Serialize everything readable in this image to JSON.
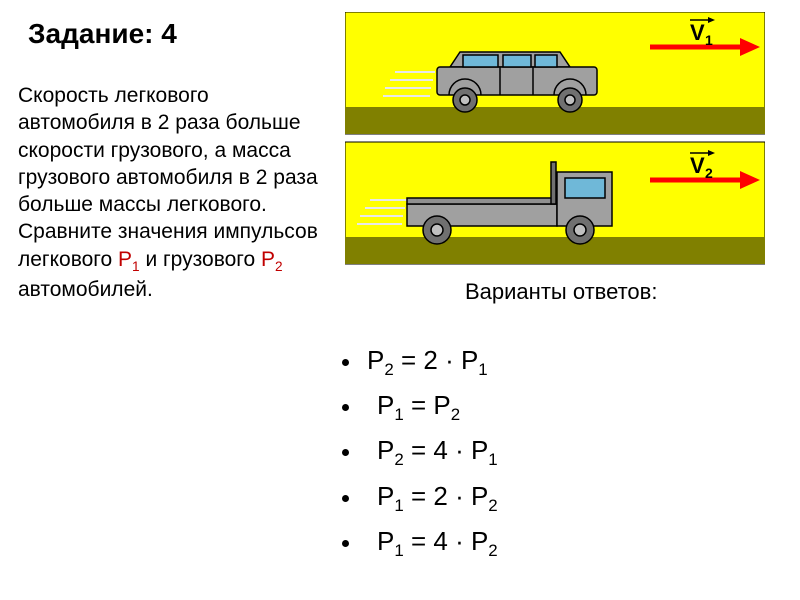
{
  "title": "Задание: 4",
  "problem": {
    "line1": "Скорость легкового автомобиля в 2 раза больше скорости грузового, а масса грузового автомобиля в 2 раза больше массы легкового.",
    "line2a": "Сравните значения импульсов легкового ",
    "p1": "Р",
    "p1_sub": "1",
    "line2b": " и грузового ",
    "p2": "Р",
    "p2_sub": "2",
    "line2c": " автомобилей."
  },
  "answer_label": "Варианты ответов:",
  "answers": [
    {
      "lhs": "P",
      "lsub": "2",
      "op": " = 2 · ",
      "rhs": "P",
      "rsub": "1",
      "indent": false
    },
    {
      "lhs": "P",
      "lsub": "1",
      "op": " = ",
      "rhs": "P",
      "rsub": "2",
      "indent": true
    },
    {
      "lhs": "P",
      "lsub": "2",
      "op": " = 4 · ",
      "rhs": "P",
      "rsub": "1",
      "indent": true
    },
    {
      "lhs": "P",
      "lsub": "1",
      "op": " = 2 · ",
      "rhs": "P",
      "rsub": "2",
      "indent": true
    },
    {
      "lhs": "P",
      "lsub": "1",
      "op": " = 4 · ",
      "rhs": "P",
      "rsub": "2",
      "indent": true
    }
  ],
  "illustration": {
    "bg_color": "#ffff00",
    "road_color": "#808000",
    "vehicle_fill": "#a0a0a0",
    "vehicle_stroke": "#000000",
    "window_color": "#6fb8d8",
    "arrow_color": "#ff0000",
    "speedline_color": "#e8e8e8",
    "v1_label": "V",
    "v1_sub": "1",
    "v2_label": "V",
    "v2_sub": "2",
    "arrow_text_color": "#000000"
  }
}
